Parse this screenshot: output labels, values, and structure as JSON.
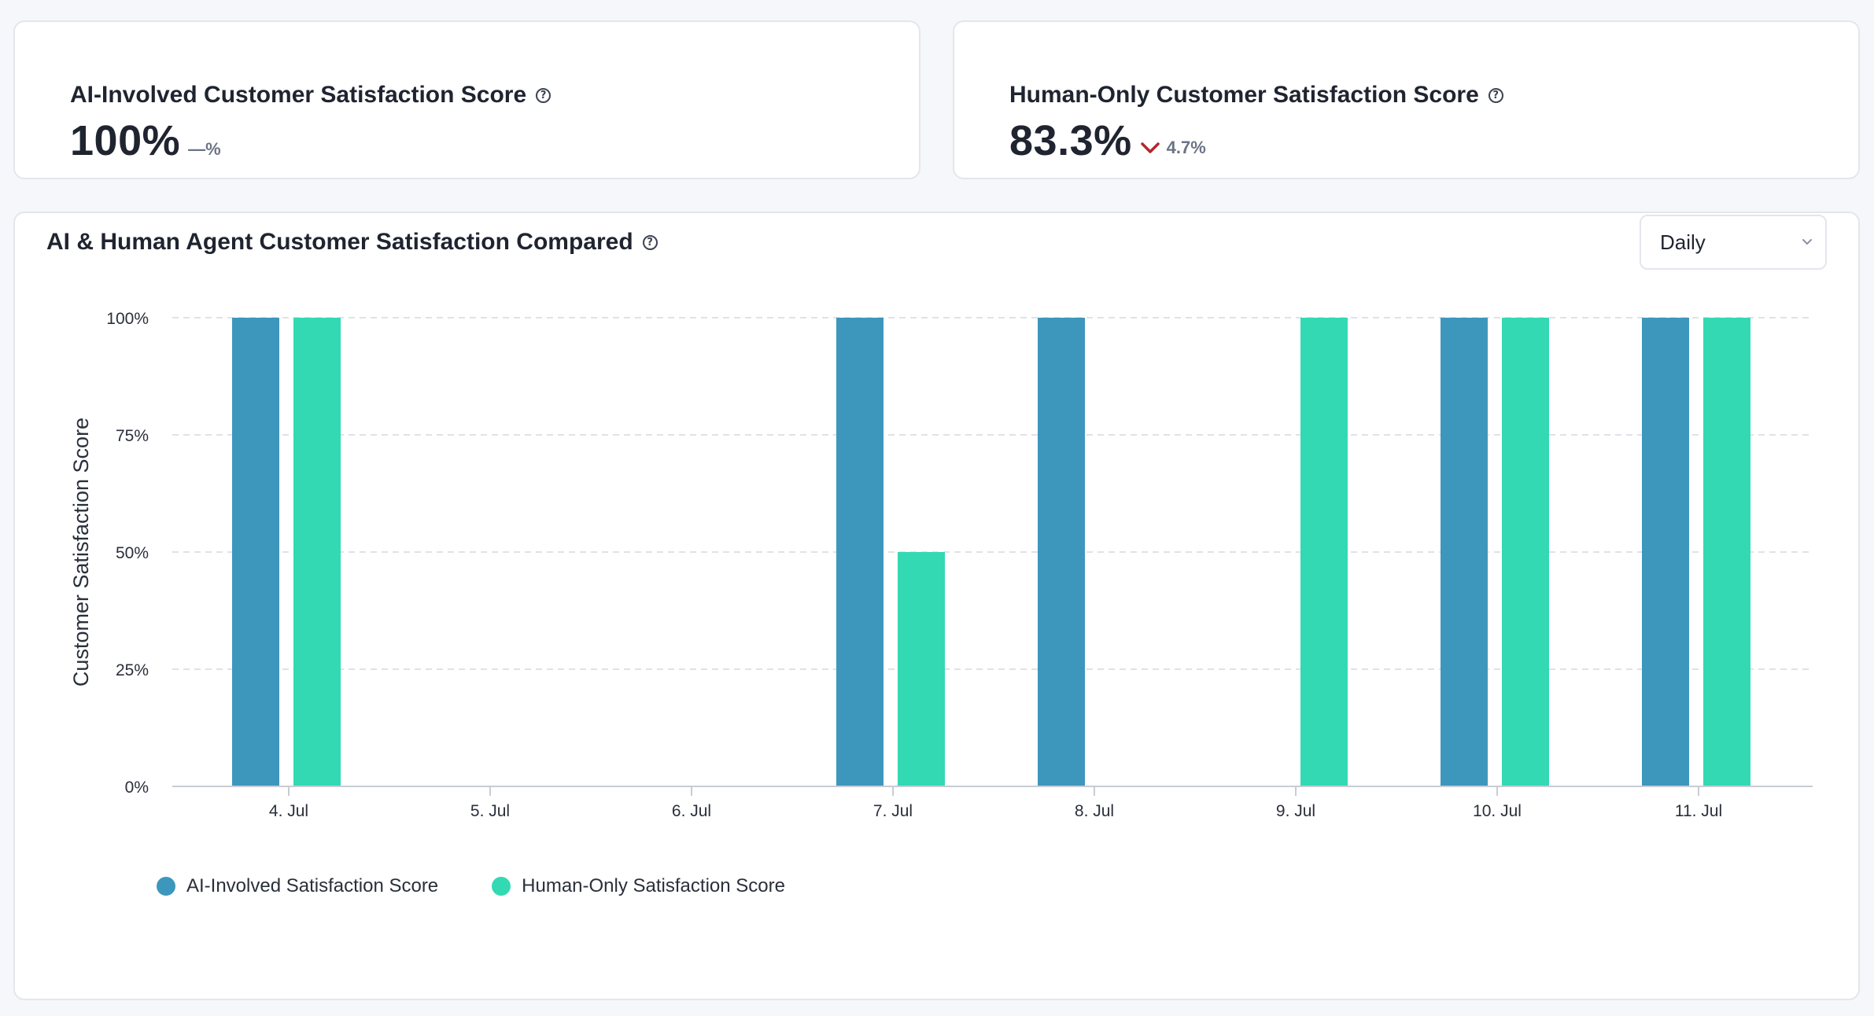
{
  "cards": {
    "ai": {
      "title": "AI-Involved Customer Satisfaction Score",
      "value": "100%",
      "delta": "—%"
    },
    "human": {
      "title": "Human-Only Customer Satisfaction Score",
      "value": "83.3%",
      "delta": "4.7%",
      "delta_direction": "down"
    }
  },
  "chart_section": {
    "title": "AI & Human Agent Customer Satisfaction Compared",
    "period_select": {
      "value": "Daily"
    }
  },
  "colors": {
    "ai_series": "#3d97bd",
    "human_series": "#33d9b2",
    "delta_down": "#b3262d"
  },
  "chart_data": {
    "type": "bar",
    "title": "AI & Human Agent Customer Satisfaction Compared",
    "xlabel": "",
    "ylabel": "Customer Satisfaction Score",
    "ylim": [
      0,
      100
    ],
    "yticks": [
      "0%",
      "25%",
      "50%",
      "75%",
      "100%"
    ],
    "ytick_values": [
      0,
      25,
      50,
      75,
      100
    ],
    "grid": true,
    "legend": "bottom-left",
    "categories": [
      "4. Jul",
      "5. Jul",
      "6. Jul",
      "7. Jul",
      "8. Jul",
      "9. Jul",
      "10. Jul",
      "11. Jul"
    ],
    "series": [
      {
        "name": "AI-Involved Satisfaction Score",
        "color": "#3d97bd",
        "values": [
          100,
          null,
          null,
          100,
          100,
          null,
          100,
          100
        ]
      },
      {
        "name": "Human-Only Satisfaction Score",
        "color": "#33d9b2",
        "values": [
          100,
          null,
          null,
          50,
          null,
          100,
          100,
          100
        ]
      }
    ]
  }
}
